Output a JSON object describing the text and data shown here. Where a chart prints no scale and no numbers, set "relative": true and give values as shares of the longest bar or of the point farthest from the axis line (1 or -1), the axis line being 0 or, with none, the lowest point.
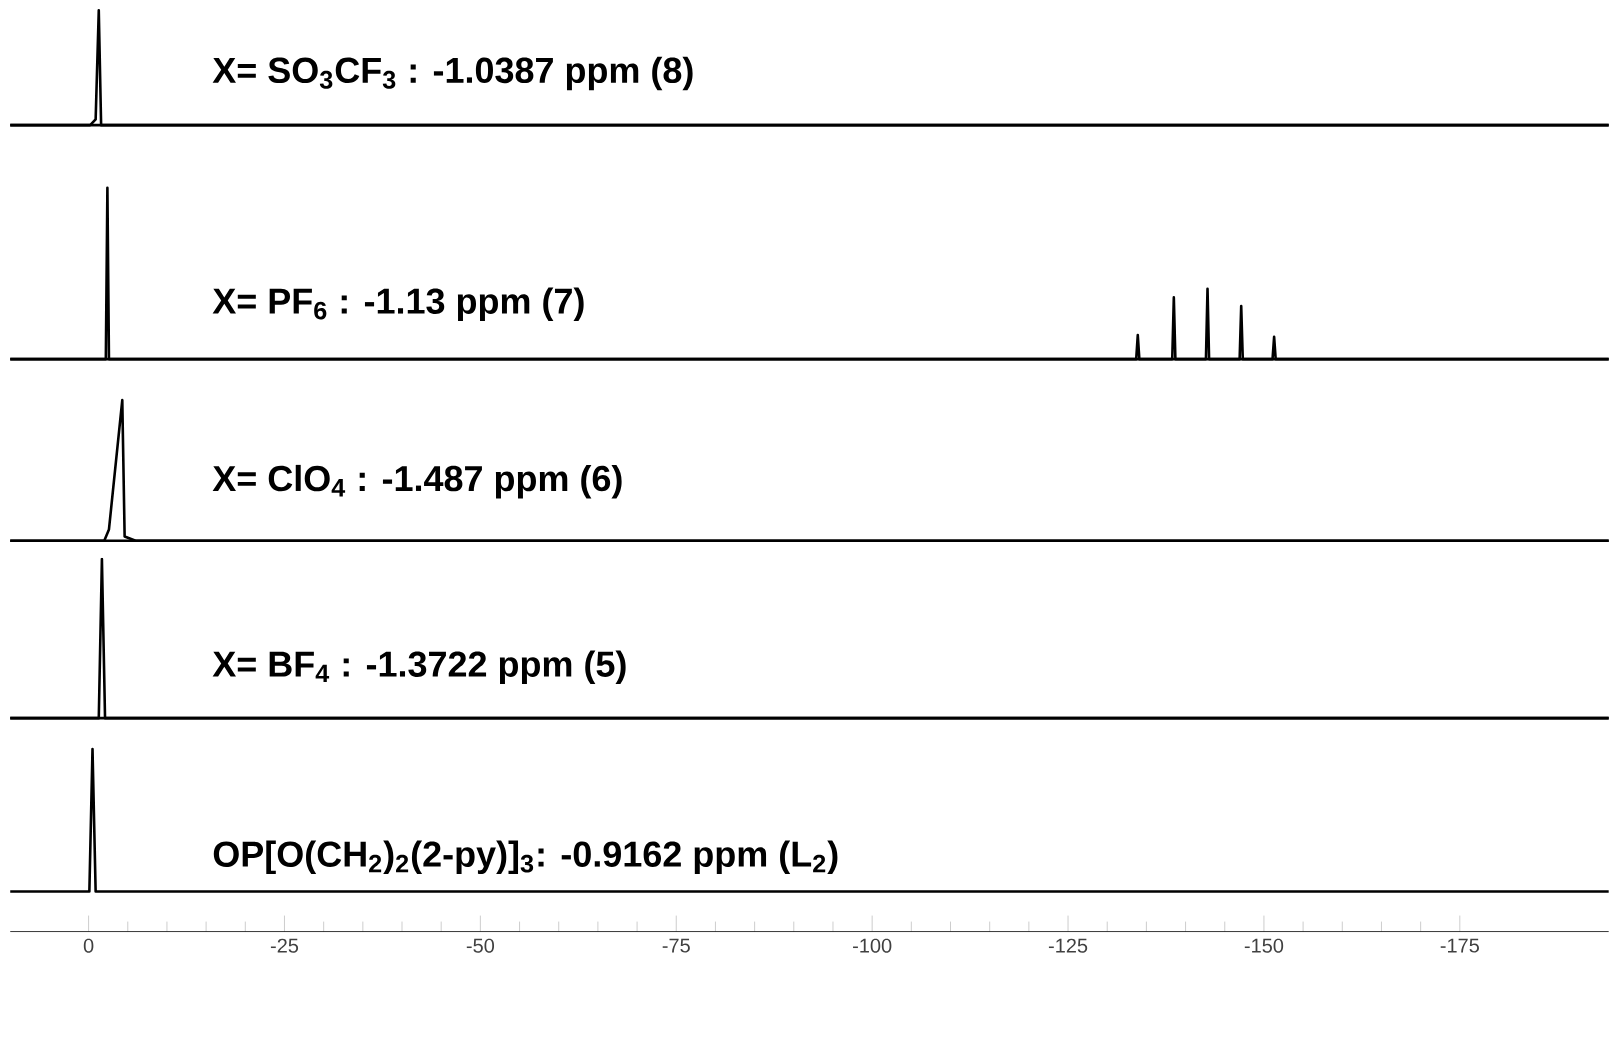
{
  "chart_data": [
    {
      "type": "line",
      "relative": true,
      "tick_labels": false,
      "xlim": [
        10,
        -194
      ],
      "annotations": [
        "X= SO$_{3}$CF$_{3}$ : -1.0387 ppm (8)"
      ],
      "series": [
        {
          "color": "#000000",
          "x": [
            10,
            -0.2,
            -0.9,
            -1.3,
            -1.6,
            -194
          ],
          "values": [
            0,
            0,
            0.05,
            1,
            0,
            0
          ]
        }
      ]
    },
    {
      "type": "line",
      "relative": true,
      "tick_labels": false,
      "xlim": [
        10,
        -194
      ],
      "annotations": [
        "X= PF$_{6}$ : -1.13 ppm (7)"
      ],
      "series": [
        {
          "color": "#000000",
          "x": [
            10,
            -2.2,
            -2.4,
            -2.6,
            -133.7,
            -133.9,
            -134.1,
            -138.3,
            -138.5,
            -138.7,
            -142.6,
            -142.8,
            -143.0,
            -146.9,
            -147.1,
            -147.3,
            -151.1,
            -151.3,
            -151.5,
            -194
          ],
          "values": [
            0,
            0,
            1,
            0,
            0,
            0.14,
            0,
            0,
            0.36,
            0,
            0,
            0.41,
            0,
            0,
            0.31,
            0,
            0,
            0.13,
            0,
            0
          ]
        }
      ]
    },
    {
      "type": "line",
      "relative": true,
      "tick_labels": false,
      "xlim": [
        10,
        -194
      ],
      "annotations": [
        "X= ClO$_{4}$ : -1.487 ppm (6)"
      ],
      "series": [
        {
          "color": "#000000",
          "x": [
            10,
            -2.0,
            -2.6,
            -4.3,
            -4.6,
            -6.0,
            -194
          ],
          "values": [
            0,
            0,
            0.08,
            1,
            0.03,
            0,
            0
          ]
        }
      ]
    },
    {
      "type": "line",
      "relative": true,
      "tick_labels": false,
      "xlim": [
        10,
        -194
      ],
      "annotations": [
        "X= BF$_{4}$ : -1.3722 ppm (5)"
      ],
      "series": [
        {
          "color": "#000000",
          "x": [
            10,
            -1.3,
            -1.7,
            -2.1,
            -194
          ],
          "values": [
            0,
            0,
            1,
            0,
            0
          ]
        }
      ]
    },
    {
      "type": "line",
      "relative": true,
      "tick_labels": "x",
      "xlim": [
        10,
        -194
      ],
      "xticks": [
        0,
        -25,
        -50,
        -75,
        -100,
        -125,
        -150,
        -175
      ],
      "annotations": [
        "OP[O(CH$_{2}$)$_{2}$(2-py)]$_{3}$:  -0.9162 ppm (L$_{2}$)"
      ],
      "series": [
        {
          "color": "#000000",
          "x": [
            10,
            -0.1,
            -0.5,
            -0.9,
            -194
          ],
          "values": [
            0,
            0,
            1,
            0,
            0
          ]
        }
      ]
    }
  ]
}
